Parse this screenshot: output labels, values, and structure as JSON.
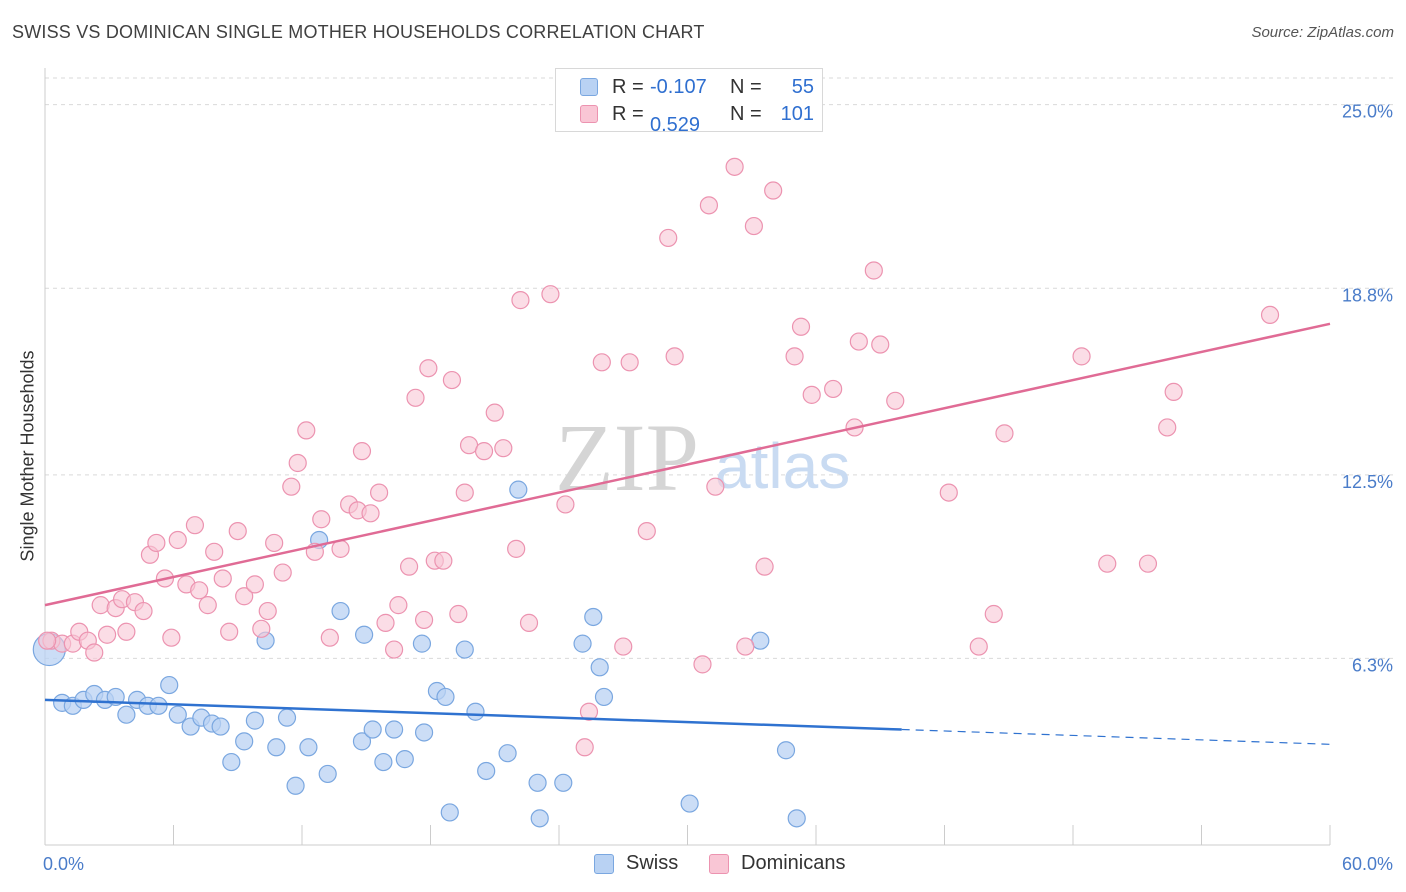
{
  "title": "SWISS VS DOMINICAN SINGLE MOTHER HOUSEHOLDS CORRELATION CHART",
  "source": "Source: ZipAtlas.com",
  "watermark": {
    "zip": "ZIP",
    "atlas": "atlas"
  },
  "legend": {
    "rows": [
      {
        "r_label": "R =",
        "r_value": "-0.107",
        "n_label": "N =",
        "n_value": "55"
      },
      {
        "r_label": "R =",
        "r_value": "0.529",
        "n_label": "N =",
        "n_value": "101"
      }
    ]
  },
  "colors": {
    "swiss_fill": "#b9d2f3",
    "swiss_stroke": "#7aa7e0",
    "swiss_line": "#2f72d0",
    "dom_fill": "#f9c6d5",
    "dom_stroke": "#ec93b0",
    "dom_line": "#e06b95",
    "grid": "#d9d9d9",
    "axis_text": "#4a7cc9"
  },
  "chart_data": {
    "type": "scatter",
    "title": "SWISS VS DOMINICAN SINGLE MOTHER HOUSEHOLDS CORRELATION CHART",
    "xlabel": "",
    "ylabel": "Single Mother Households",
    "xlim": [
      0,
      60
    ],
    "ylim": [
      0,
      25.9
    ],
    "x_tick_labels": {
      "min": "0.0%",
      "max": "60.0%"
    },
    "y_ticks": [
      {
        "value": 6.3,
        "label": "6.3%"
      },
      {
        "value": 12.5,
        "label": "12.5%"
      },
      {
        "value": 18.8,
        "label": "18.8%"
      },
      {
        "value": 25.0,
        "label": "25.0%"
      }
    ],
    "x_minor_ticks": [
      6,
      12,
      18,
      24,
      30,
      36,
      42,
      48,
      54,
      60
    ],
    "series": [
      {
        "name": "Swiss",
        "r": -0.107,
        "n": 55,
        "trend": {
          "x0": 0,
          "y0": 4.9,
          "x1": 40,
          "y1": 3.9,
          "dash_x1": 60,
          "dash_y1": 3.4
        },
        "points": [
          [
            0.2,
            6.6
          ],
          [
            0.8,
            4.8
          ],
          [
            1.3,
            4.7
          ],
          [
            1.8,
            4.9
          ],
          [
            2.3,
            5.1
          ],
          [
            2.8,
            4.9
          ],
          [
            3.3,
            5.0
          ],
          [
            3.8,
            4.4
          ],
          [
            4.3,
            4.9
          ],
          [
            4.8,
            4.7
          ],
          [
            5.3,
            4.7
          ],
          [
            5.8,
            5.4
          ],
          [
            6.2,
            4.4
          ],
          [
            6.8,
            4.0
          ],
          [
            7.3,
            4.3
          ],
          [
            7.8,
            4.1
          ],
          [
            8.2,
            4.0
          ],
          [
            8.7,
            2.8
          ],
          [
            9.3,
            3.5
          ],
          [
            9.8,
            4.2
          ],
          [
            10.3,
            6.9
          ],
          [
            10.8,
            3.3
          ],
          [
            11.3,
            4.3
          ],
          [
            11.7,
            2.0
          ],
          [
            12.3,
            3.3
          ],
          [
            12.8,
            10.3
          ],
          [
            13.2,
            2.4
          ],
          [
            13.8,
            7.9
          ],
          [
            14.8,
            3.5
          ],
          [
            14.9,
            7.1
          ],
          [
            15.3,
            3.9
          ],
          [
            15.8,
            2.8
          ],
          [
            16.3,
            3.9
          ],
          [
            16.8,
            2.9
          ],
          [
            17.6,
            6.8
          ],
          [
            17.7,
            3.8
          ],
          [
            18.3,
            5.2
          ],
          [
            18.9,
            1.1
          ],
          [
            18.7,
            5.0
          ],
          [
            19.6,
            6.6
          ],
          [
            20.1,
            4.5
          ],
          [
            20.6,
            2.5
          ],
          [
            21.6,
            3.1
          ],
          [
            22.1,
            12.0
          ],
          [
            23.0,
            2.1
          ],
          [
            23.1,
            0.9
          ],
          [
            24.2,
            2.1
          ],
          [
            25.1,
            6.8
          ],
          [
            25.6,
            7.7
          ],
          [
            25.9,
            6.0
          ],
          [
            26.1,
            5.0
          ],
          [
            30.1,
            1.4
          ],
          [
            33.4,
            6.9
          ],
          [
            34.6,
            3.2
          ],
          [
            35.1,
            0.9
          ]
        ]
      },
      {
        "name": "Dominicans",
        "r": 0.529,
        "n": 101,
        "trend": {
          "x0": 0,
          "y0": 8.1,
          "x1": 60,
          "y1": 17.6
        },
        "points": [
          [
            0.3,
            6.9
          ],
          [
            0.8,
            6.8
          ],
          [
            1.3,
            6.8
          ],
          [
            1.6,
            7.2
          ],
          [
            2.0,
            6.9
          ],
          [
            2.3,
            6.5
          ],
          [
            2.6,
            8.1
          ],
          [
            2.9,
            7.1
          ],
          [
            3.3,
            8.0
          ],
          [
            3.6,
            8.3
          ],
          [
            3.8,
            7.2
          ],
          [
            4.2,
            8.2
          ],
          [
            4.6,
            7.9
          ],
          [
            4.9,
            9.8
          ],
          [
            5.2,
            10.2
          ],
          [
            5.6,
            9.0
          ],
          [
            5.9,
            7.0
          ],
          [
            6.2,
            10.3
          ],
          [
            6.6,
            8.8
          ],
          [
            7.0,
            10.8
          ],
          [
            7.2,
            8.6
          ],
          [
            7.6,
            8.1
          ],
          [
            7.9,
            9.9
          ],
          [
            8.3,
            9.0
          ],
          [
            8.6,
            7.2
          ],
          [
            9.0,
            10.6
          ],
          [
            9.3,
            8.4
          ],
          [
            9.8,
            8.8
          ],
          [
            10.1,
            7.3
          ],
          [
            10.4,
            7.9
          ],
          [
            10.7,
            10.2
          ],
          [
            11.1,
            9.2
          ],
          [
            11.5,
            12.1
          ],
          [
            11.8,
            12.9
          ],
          [
            12.2,
            14.0
          ],
          [
            12.6,
            9.9
          ],
          [
            12.9,
            11.0
          ],
          [
            13.3,
            7.0
          ],
          [
            13.8,
            10.0
          ],
          [
            14.2,
            11.5
          ],
          [
            14.6,
            11.3
          ],
          [
            14.8,
            13.3
          ],
          [
            15.2,
            11.2
          ],
          [
            15.6,
            11.9
          ],
          [
            15.9,
            7.5
          ],
          [
            16.3,
            6.6
          ],
          [
            16.5,
            8.1
          ],
          [
            17.0,
            9.4
          ],
          [
            17.3,
            15.1
          ],
          [
            17.7,
            7.6
          ],
          [
            17.9,
            16.1
          ],
          [
            18.2,
            9.6
          ],
          [
            18.6,
            9.6
          ],
          [
            19.0,
            15.7
          ],
          [
            19.3,
            7.8
          ],
          [
            19.6,
            11.9
          ],
          [
            19.8,
            13.5
          ],
          [
            20.5,
            13.3
          ],
          [
            21.0,
            14.6
          ],
          [
            21.4,
            13.4
          ],
          [
            22.0,
            10.0
          ],
          [
            22.2,
            18.4
          ],
          [
            22.6,
            7.5
          ],
          [
            23.6,
            18.6
          ],
          [
            24.3,
            11.5
          ],
          [
            25.2,
            3.3
          ],
          [
            25.4,
            4.5
          ],
          [
            26.0,
            16.3
          ],
          [
            27.0,
            6.7
          ],
          [
            27.3,
            16.3
          ],
          [
            28.1,
            10.6
          ],
          [
            29.1,
            20.5
          ],
          [
            29.4,
            16.5
          ],
          [
            30.7,
            6.1
          ],
          [
            31.0,
            21.6
          ],
          [
            31.3,
            12.1
          ],
          [
            32.2,
            22.9
          ],
          [
            32.7,
            6.7
          ],
          [
            33.1,
            20.9
          ],
          [
            33.6,
            9.4
          ],
          [
            34.0,
            22.1
          ],
          [
            35.0,
            16.5
          ],
          [
            35.3,
            17.5
          ],
          [
            35.8,
            15.2
          ],
          [
            36.8,
            15.4
          ],
          [
            37.8,
            14.1
          ],
          [
            38.0,
            17.0
          ],
          [
            38.7,
            19.4
          ],
          [
            39.0,
            16.9
          ],
          [
            39.7,
            15.0
          ],
          [
            42.2,
            11.9
          ],
          [
            43.6,
            6.7
          ],
          [
            44.3,
            7.8
          ],
          [
            44.8,
            13.9
          ],
          [
            48.4,
            16.5
          ],
          [
            49.6,
            9.5
          ],
          [
            51.5,
            9.5
          ],
          [
            52.4,
            14.1
          ],
          [
            52.7,
            15.3
          ],
          [
            57.2,
            17.9
          ],
          [
            0.1,
            6.9
          ]
        ]
      }
    ]
  }
}
